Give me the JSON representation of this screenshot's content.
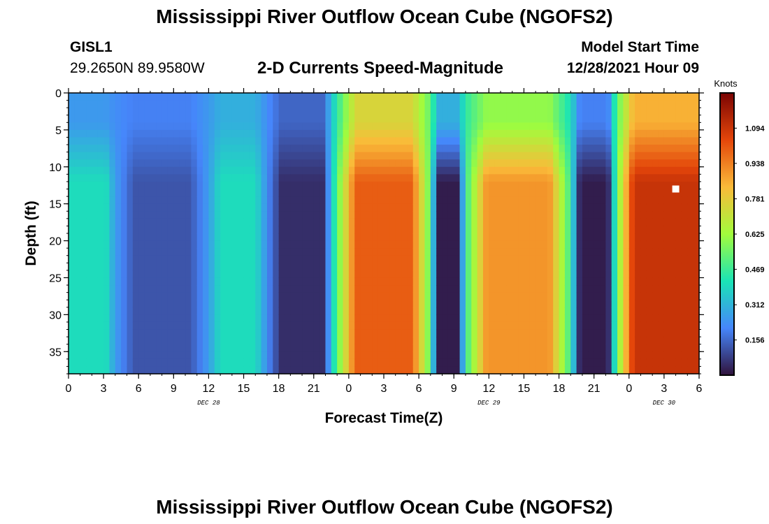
{
  "header": {
    "title": "Mississippi River Outflow Ocean Cube (NGOFS2)",
    "station_id": "GISL1",
    "station_coords": "29.2650N  89.9580W",
    "plot_type": "2-D Currents Speed-Magnitude",
    "model_start_label": "Model Start Time",
    "model_start_value": "12/28/2021 Hour 09"
  },
  "footer": {
    "title": "Mississippi River Outflow Ocean Cube (NGOFS2)"
  },
  "chart_data": {
    "type": "heatmap",
    "title": "2-D Currents Speed-Magnitude",
    "xlabel": "Forecast Time(Z)",
    "ylabel": "Depth (ft)",
    "x_ticks": [
      "0",
      "3",
      "6",
      "9",
      "12",
      "15",
      "18",
      "21",
      "0",
      "3",
      "6",
      "9",
      "12",
      "15",
      "18",
      "21",
      "0",
      "3",
      "6"
    ],
    "x_hours_range": [
      0,
      54
    ],
    "date_labels": [
      {
        "text": "DEC 28",
        "hour": 12
      },
      {
        "text": "DEC 29",
        "hour": 36
      },
      {
        "text": "DEC 30",
        "hour": 51
      }
    ],
    "y_ticks": [
      0,
      5,
      10,
      15,
      20,
      25,
      30,
      35
    ],
    "ylim": [
      0,
      38
    ],
    "y_inverted": true,
    "colorbar": {
      "unit": "Knots",
      "range": [
        0,
        1.25
      ],
      "ticks": [
        "1.094",
        "0.938",
        "0.781",
        "0.625",
        "0.469",
        "0.312",
        "0.156"
      ],
      "colors": [
        "#30123b",
        "#4686fb",
        "#1ae4b6",
        "#a2fc3c",
        "#faba39",
        "#e4460a",
        "#7a0403"
      ]
    },
    "marker": {
      "hour": 52,
      "depth": 13
    },
    "speed_zones": [
      {
        "hours": [
          0,
          4
        ],
        "surface_knots": 0.25,
        "deep_knots": 0.4
      },
      {
        "hours": [
          4,
          12
        ],
        "surface_knots": 0.2,
        "deep_knots": 0.12
      },
      {
        "hours": [
          12,
          17
        ],
        "surface_knots": 0.3,
        "deep_knots": 0.4
      },
      {
        "hours": [
          17,
          23
        ],
        "surface_knots": 0.15,
        "deep_knots": 0.05
      },
      {
        "hours": [
          23,
          31
        ],
        "surface_knots": 0.75,
        "deep_knots": 1.0
      },
      {
        "hours": [
          31,
          34
        ],
        "surface_knots": 0.3,
        "deep_knots": 0.02
      },
      {
        "hours": [
          34,
          43
        ],
        "surface_knots": 0.6,
        "deep_knots": 0.9
      },
      {
        "hours": [
          43,
          47
        ],
        "surface_knots": 0.2,
        "deep_knots": 0.02
      },
      {
        "hours": [
          47,
          54
        ],
        "surface_knots": 0.85,
        "deep_knots": 1.1
      }
    ]
  }
}
